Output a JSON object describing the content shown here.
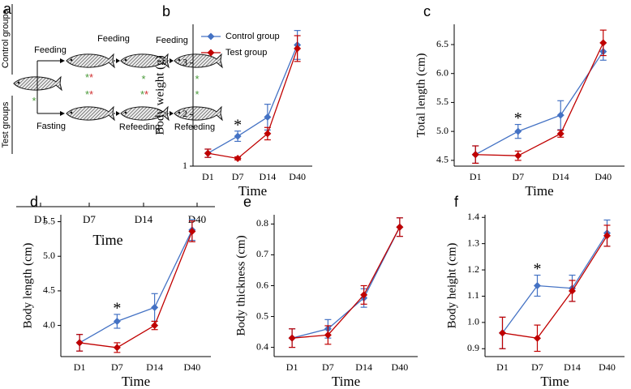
{
  "diagram": {
    "label": "a",
    "groups": [
      "Control groups",
      "Test groups"
    ],
    "top_labels": [
      "Feeding",
      "Feeding",
      "Feeding"
    ],
    "bottom_labels": [
      "Fasting",
      "Refeeding",
      "Refeeding"
    ],
    "days": [
      "D1",
      "D7",
      "D14",
      "D40"
    ],
    "xlabel": "Time",
    "stars": [
      [
        {
          "text": "*",
          "color": "#4a9a3a"
        }
      ],
      [
        {
          "text": "*",
          "color": "#4a9a3a"
        },
        {
          "text": "*",
          "color": "#d03030"
        }
      ],
      [
        {
          "text": "*",
          "color": "#4a9a3a"
        }
      ],
      [
        {
          "text": "*",
          "color": "#4a9a3a"
        }
      ],
      [
        {
          "text": "*",
          "color": "#4a9a3a"
        },
        {
          "text": "*",
          "color": "#d03030"
        }
      ],
      [
        {
          "text": "*",
          "color": "#4a9a3a"
        },
        {
          "text": "*",
          "color": "#d03030"
        }
      ],
      [
        {
          "text": "*",
          "color": "#4a9a3a"
        }
      ]
    ]
  },
  "chart_data": [
    {
      "label": "b",
      "type": "line",
      "xlabel": "Time",
      "ylabel": "Body weight (g)",
      "legend": "upper left",
      "categories": [
        "D1",
        "D7",
        "D14",
        "D40"
      ],
      "ylim": [
        1,
        3.75
      ],
      "yticks": [
        1,
        2,
        3
      ],
      "series": [
        {
          "name": "Control group",
          "color": "#4472c4",
          "values": [
            1.25,
            1.58,
            1.95,
            3.35
          ],
          "errors": [
            0.08,
            0.1,
            0.25,
            0.28
          ]
        },
        {
          "name": "Test group",
          "color": "#c00000",
          "values": [
            1.25,
            1.15,
            1.63,
            3.28
          ],
          "errors": [
            0.08,
            0.03,
            0.12,
            0.25
          ]
        }
      ],
      "annotations": [
        {
          "text": "*",
          "x": "D7"
        }
      ]
    },
    {
      "label": "c",
      "type": "line",
      "xlabel": "Time",
      "ylabel": "Total length (cm)",
      "categories": [
        "D1",
        "D7",
        "D14",
        "D40"
      ],
      "ylim": [
        4.4,
        6.85
      ],
      "yticks": [
        4.5,
        {
          "value": 5,
          "label": "5.0"
        },
        5.5,
        {
          "value": 6,
          "label": "6.0"
        },
        6.5
      ],
      "series": [
        {
          "color": "#4472c4",
          "values": [
            4.6,
            5.0,
            5.28,
            6.38
          ],
          "errors": [
            0.15,
            0.12,
            0.25,
            0.15
          ]
        },
        {
          "color": "#c00000",
          "values": [
            4.6,
            4.58,
            4.96,
            6.53
          ],
          "errors": [
            0.15,
            0.08,
            0.06,
            0.22
          ]
        }
      ],
      "annotations": [
        {
          "text": "*",
          "x": "D7"
        }
      ]
    },
    {
      "label": "d",
      "type": "line",
      "xlabel": "Time",
      "ylabel": "Body length (cm)",
      "categories": [
        "D1",
        "D7",
        "D14",
        "D40"
      ],
      "ylim": [
        3.55,
        5.6
      ],
      "yticks": [
        {
          "value": 4,
          "label": "4.0"
        },
        4.5,
        {
          "value": 5,
          "label": "5.0"
        },
        5.5
      ],
      "series": [
        {
          "color": "#4472c4",
          "values": [
            3.75,
            4.06,
            4.26,
            5.38
          ],
          "errors": [
            0.12,
            0.1,
            0.2,
            0.15
          ]
        },
        {
          "color": "#c00000",
          "values": [
            3.75,
            3.68,
            4.0,
            5.36
          ],
          "errors": [
            0.12,
            0.07,
            0.06,
            0.15
          ]
        }
      ],
      "annotations": [
        {
          "text": "*",
          "x": "D7"
        }
      ]
    },
    {
      "label": "e",
      "type": "line",
      "xlabel": "Time",
      "ylabel": "Body thickness (cm)",
      "categories": [
        "D1",
        "D7",
        "D14",
        "D40"
      ],
      "ylim": [
        0.37,
        0.83
      ],
      "yticks": [
        0.4,
        0.5,
        0.6,
        0.7,
        0.8
      ],
      "series": [
        {
          "color": "#4472c4",
          "values": [
            0.43,
            0.46,
            0.56,
            0.79
          ],
          "errors": [
            0.03,
            0.03,
            0.03,
            0.03
          ]
        },
        {
          "color": "#c00000",
          "values": [
            0.43,
            0.44,
            0.57,
            0.79
          ],
          "errors": [
            0.03,
            0.03,
            0.03,
            0.03
          ]
        }
      ]
    },
    {
      "label": "f",
      "type": "line",
      "xlabel": "Time",
      "ylabel": "Body height (cm)",
      "categories": [
        "D1",
        "D7",
        "D14",
        "D40"
      ],
      "ylim": [
        0.87,
        1.41
      ],
      "yticks": [
        0.9,
        {
          "value": 1,
          "label": "1.0"
        },
        1.1,
        1.2,
        1.3,
        1.4
      ],
      "series": [
        {
          "color": "#4472c4",
          "values": [
            0.96,
            1.14,
            1.13,
            1.34
          ],
          "errors": [
            0.06,
            0.04,
            0.05,
            0.05
          ]
        },
        {
          "color": "#c00000",
          "values": [
            0.96,
            0.94,
            1.12,
            1.33
          ],
          "errors": [
            0.06,
            0.05,
            0.04,
            0.04
          ]
        }
      ],
      "annotations": [
        {
          "text": "*",
          "x": "D7"
        }
      ]
    }
  ]
}
